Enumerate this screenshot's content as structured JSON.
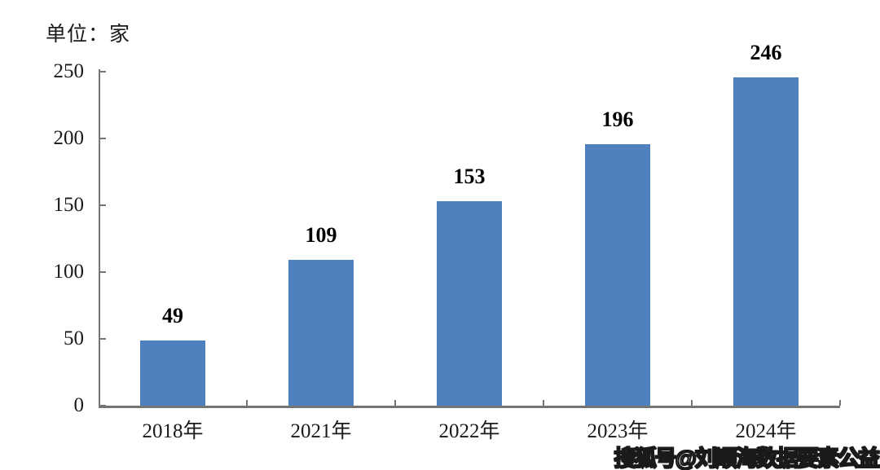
{
  "chart_data": {
    "type": "bar",
    "title": "",
    "unit_label": "单位：家",
    "categories": [
      "2018年",
      "2021年",
      "2022年",
      "2023年",
      "2024年"
    ],
    "values": [
      49,
      109,
      153,
      196,
      246
    ],
    "xlabel": "",
    "ylabel": "",
    "ylim": [
      0,
      250
    ],
    "yticks": [
      0,
      50,
      100,
      150,
      200,
      250
    ],
    "grid": false,
    "legend": false,
    "bar_color": "#4E81BD",
    "axis_color": "#757575",
    "label_color": "#000000",
    "tick_style": "inside"
  },
  "watermark": {
    "text": "搜狐号@刘顺海数据要素公益"
  }
}
